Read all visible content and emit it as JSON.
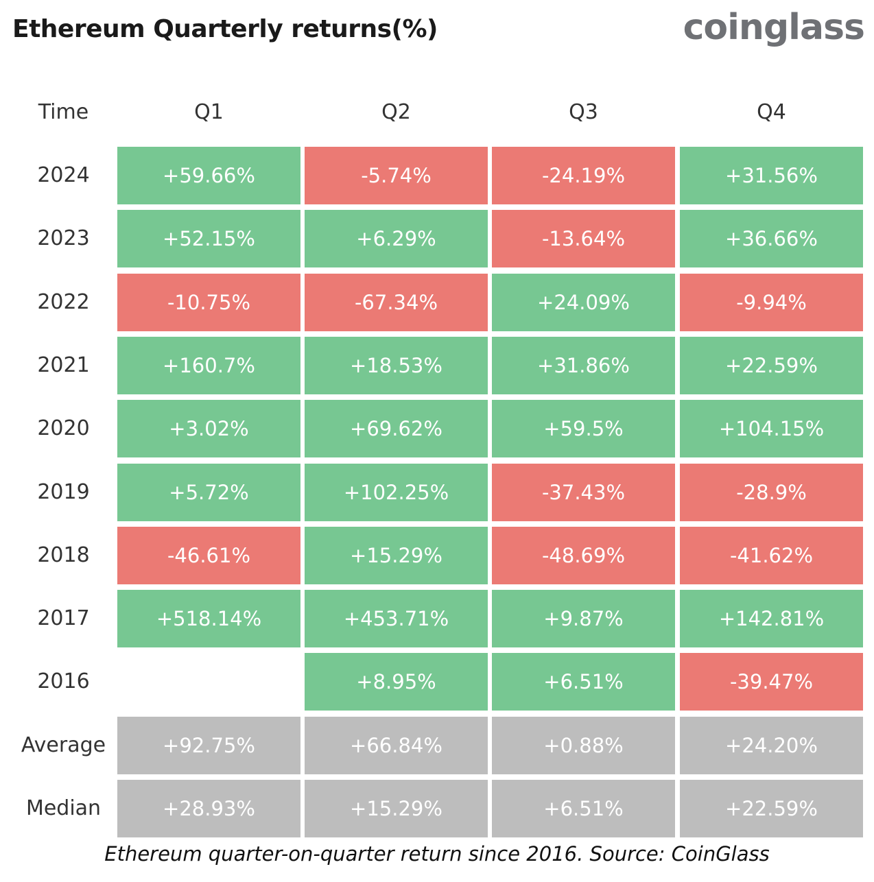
{
  "title": "Ethereum Quarterly returns(%)",
  "logo": "coinglass",
  "caption": "Ethereum quarter-on-quarter return since 2016. Source: CoinGlass",
  "colors": {
    "positive": "#77c792",
    "negative": "#eb7a74",
    "summary": "#bdbdbd"
  },
  "chart_data": {
    "type": "table",
    "corner_label": "Time",
    "columns": [
      "Q1",
      "Q2",
      "Q3",
      "Q4"
    ],
    "rows": [
      {
        "label": "2024",
        "kind": "year",
        "cells": [
          "+59.66%",
          "-5.74%",
          "-24.19%",
          "+31.56%"
        ]
      },
      {
        "label": "2023",
        "kind": "year",
        "cells": [
          "+52.15%",
          "+6.29%",
          "-13.64%",
          "+36.66%"
        ]
      },
      {
        "label": "2022",
        "kind": "year",
        "cells": [
          "-10.75%",
          "-67.34%",
          "+24.09%",
          "-9.94%"
        ]
      },
      {
        "label": "2021",
        "kind": "year",
        "cells": [
          "+160.7%",
          "+18.53%",
          "+31.86%",
          "+22.59%"
        ]
      },
      {
        "label": "2020",
        "kind": "year",
        "cells": [
          "+3.02%",
          "+69.62%",
          "+59.5%",
          "+104.15%"
        ]
      },
      {
        "label": "2019",
        "kind": "year",
        "cells": [
          "+5.72%",
          "+102.25%",
          "-37.43%",
          "-28.9%"
        ]
      },
      {
        "label": "2018",
        "kind": "year",
        "cells": [
          "-46.61%",
          "+15.29%",
          "-48.69%",
          "-41.62%"
        ]
      },
      {
        "label": "2017",
        "kind": "year",
        "cells": [
          "+518.14%",
          "+453.71%",
          "+9.87%",
          "+142.81%"
        ]
      },
      {
        "label": "2016",
        "kind": "year",
        "cells": [
          "",
          "+8.95%",
          "+6.51%",
          "-39.47%"
        ]
      },
      {
        "label": "Average",
        "kind": "summary",
        "cells": [
          "+92.75%",
          "+66.84%",
          "+0.88%",
          "+24.20%"
        ]
      },
      {
        "label": "Median",
        "kind": "summary",
        "cells": [
          "+28.93%",
          "+15.29%",
          "+6.51%",
          "+22.59%"
        ]
      }
    ]
  }
}
